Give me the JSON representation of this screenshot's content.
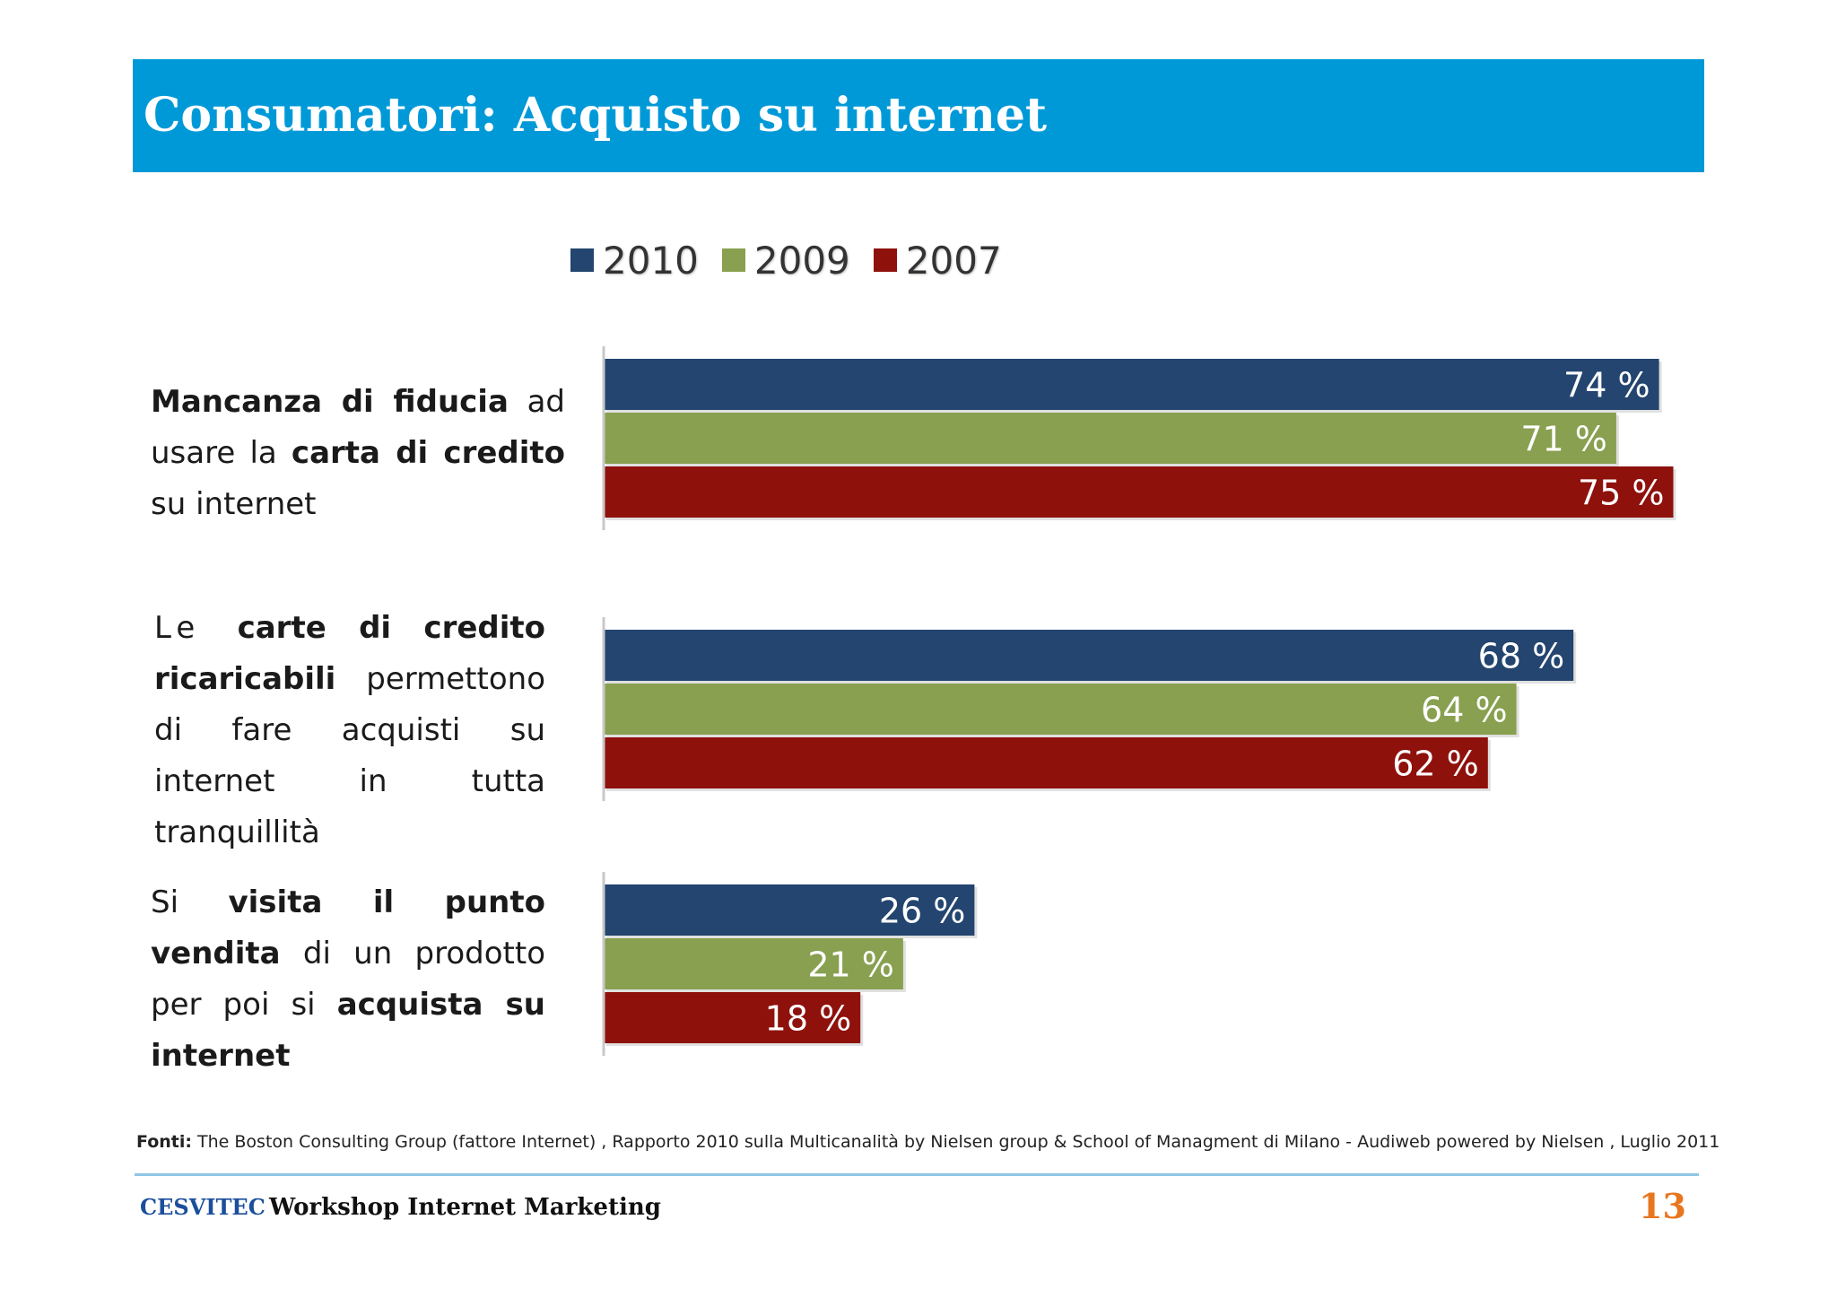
{
  "title": "Consumatori: Acquisto su internet",
  "categories": [
    {
      "id": "fiducia",
      "parts": [
        {
          "bold": true,
          "text": "Mancanza di fiducia"
        },
        {
          "bold": false,
          "text": " ad usare la "
        },
        {
          "bold": true,
          "text": "carta di credito"
        },
        {
          "bold": false,
          "text": " su internet"
        }
      ]
    },
    {
      "id": "ricaricabili",
      "parts": [
        {
          "bold": false,
          "text": "Le "
        },
        {
          "bold": true,
          "text": "carte di credito ricaricabili"
        },
        {
          "bold": false,
          "text": " permettono di fare acquisti su internet in tutta tranquillità"
        }
      ]
    },
    {
      "id": "punto-vendita",
      "parts": [
        {
          "bold": false,
          "text": "Si "
        },
        {
          "bold": true,
          "text": "visita il punto vendita"
        },
        {
          "bold": false,
          "text": " di un prodotto per poi si "
        },
        {
          "bold": true,
          "text": "acquista su internet"
        }
      ]
    }
  ],
  "chart_data": {
    "type": "bar",
    "orientation": "horizontal",
    "title": "",
    "xlabel": "",
    "ylabel": "",
    "xlim": [
      0,
      80
    ],
    "grid": false,
    "legend_position": "top",
    "value_suffix": " %",
    "series": [
      {
        "name": "2010",
        "color": "#23456f",
        "values": [
          74,
          68,
          26
        ]
      },
      {
        "name": "2009",
        "color": "#88a04f",
        "values": [
          71,
          64,
          21
        ]
      },
      {
        "name": "2007",
        "color": "#8e110c",
        "values": [
          75,
          62,
          18
        ]
      }
    ]
  },
  "sources": {
    "label": "Fonti:",
    "text": " The Boston Consulting Group (fattore Internet) , Rapporto 2010 sulla Multicanalità by Nielsen group & School of Managment di Milano -  Audiweb powered by Nielsen , Luglio 2011"
  },
  "footer": {
    "logo_text": "CESVITEC",
    "title": "Workshop Internet Marketing",
    "page_number": "13"
  },
  "colors": {
    "title_bar": "#0099d8",
    "footer_line": "#8fc6e6",
    "page_number": "#e8761e"
  }
}
